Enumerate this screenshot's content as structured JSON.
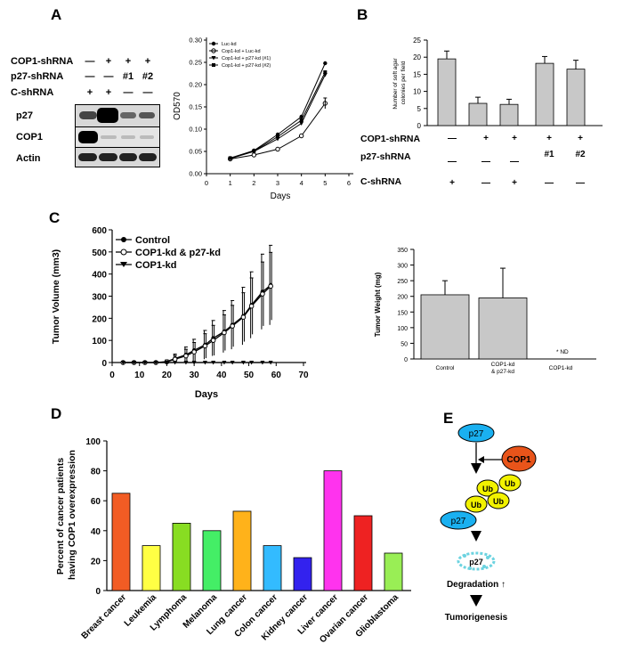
{
  "panels": {
    "A": "A",
    "B": "B",
    "C": "C",
    "D": "D",
    "E": "E"
  },
  "western_blot": {
    "row_labels": [
      "COP1-shRNA",
      "p27-shRNA",
      "C-shRNA"
    ],
    "marks": [
      [
        "—",
        "+",
        "+",
        "+"
      ],
      [
        "—",
        "—",
        "#1",
        "#2"
      ],
      [
        "+",
        "+",
        "—",
        "—"
      ]
    ],
    "blots": [
      "p27",
      "COP1",
      "Actin"
    ]
  },
  "chart_data": [
    {
      "type": "line",
      "panel": "A",
      "ylabel": "OD570",
      "xlabel": "Days",
      "xlim": [
        0,
        6
      ],
      "ylim": [
        0.0,
        0.3
      ],
      "xticks": [
        0,
        1,
        2,
        3,
        4,
        5,
        6
      ],
      "yticks": [
        "0.00",
        "0.05",
        "0.10",
        "0.15",
        "0.20",
        "0.25",
        "0.30"
      ],
      "x": [
        1,
        2,
        3,
        4,
        5
      ],
      "series": [
        {
          "name": "Luc-kd",
          "values": [
            0.035,
            0.052,
            0.088,
            0.128,
            0.248
          ]
        },
        {
          "name": "Cop1-kd + Luc-kd",
          "values": [
            0.033,
            0.042,
            0.055,
            0.085,
            0.158
          ]
        },
        {
          "name": "Cop1-kd + p27-kd (#1)",
          "values": [
            0.034,
            0.05,
            0.078,
            0.113,
            0.222
          ]
        },
        {
          "name": "Cop1-kd + p27-kd (#2)",
          "values": [
            0.035,
            0.051,
            0.083,
            0.12,
            0.228
          ]
        }
      ]
    },
    {
      "type": "bar",
      "panel": "B",
      "ylabel": "Number of soft agar colonies per field",
      "ylim": [
        0,
        25
      ],
      "yticks": [
        "0",
        "5",
        "10",
        "15",
        "20",
        "25"
      ],
      "values": [
        19.5,
        6.5,
        6.2,
        18.2,
        16.5
      ],
      "errors": [
        2.3,
        1.8,
        1.5,
        2.0,
        2.6
      ],
      "row_labels": [
        "COP1-shRNA",
        "p27-shRNA",
        "C-shRNA"
      ],
      "marks": [
        [
          "—",
          "+",
          "+",
          "+",
          "+"
        ],
        [
          "—",
          "—",
          "—",
          "#1",
          "#2"
        ],
        [
          "+",
          "—",
          "+",
          "—",
          "—"
        ]
      ]
    },
    {
      "type": "line",
      "panel": "C",
      "ylabel": "Tumor Volume (mm3)",
      "xlabel": "Days",
      "xlim": [
        0,
        70
      ],
      "ylim": [
        0,
        600
      ],
      "xticks": [
        0,
        10,
        20,
        30,
        40,
        50,
        60,
        70
      ],
      "yticks": [
        0,
        100,
        200,
        300,
        400,
        500,
        600
      ],
      "x": [
        4,
        8,
        12,
        16,
        20,
        23,
        27,
        30,
        34,
        37,
        41,
        44,
        48,
        51,
        55,
        58
      ],
      "series": [
        {
          "name": "Control",
          "values": [
            0,
            0,
            0,
            0,
            4,
            18,
            35,
            55,
            80,
            110,
            140,
            170,
            210,
            260,
            320,
            350
          ]
        },
        {
          "name": "COP1-kd & p27-kd",
          "values": [
            0,
            0,
            0,
            0,
            3,
            15,
            30,
            48,
            75,
            100,
            135,
            165,
            205,
            255,
            310,
            345
          ]
        },
        {
          "name": "COP1-kd",
          "values": [
            0,
            0,
            0,
            0,
            0,
            0,
            0,
            0,
            0,
            0,
            0,
            0,
            0,
            0,
            0,
            0
          ]
        }
      ],
      "errors": [
        0,
        0,
        0,
        0,
        8,
        20,
        35,
        50,
        65,
        80,
        95,
        110,
        130,
        150,
        170,
        180
      ]
    },
    {
      "type": "bar",
      "panel": "C",
      "ylabel": "Tumor Weight (mg)",
      "ylim": [
        0,
        350
      ],
      "yticks": [
        0,
        50,
        100,
        150,
        200,
        250,
        300,
        350
      ],
      "categories": [
        "Control",
        "COP1-kd & p27-kd",
        "COP1-kd"
      ],
      "values": [
        205,
        195,
        0
      ],
      "errors": [
        45,
        95,
        0
      ],
      "annotation": "* ND"
    },
    {
      "type": "bar",
      "panel": "D",
      "ylabel": "Percent of cancer patients having COP1 overexpression",
      "ylim": [
        0,
        100
      ],
      "yticks": [
        0,
        20,
        40,
        60,
        80,
        100
      ],
      "categories": [
        "Breast cancer",
        "Leukemia",
        "Lymphoma",
        "Melanoma",
        "Lung cancer",
        "Colon cancer",
        "Kidney cancer",
        "Liver cancer",
        "Ovarian cancer",
        "Glioblastoma"
      ],
      "values": [
        65,
        30,
        45,
        40,
        53,
        30,
        22,
        80,
        50,
        25
      ],
      "colors": [
        "#f25c24",
        "#ffff44",
        "#88dd22",
        "#44ee66",
        "#ffb21a",
        "#33bbff",
        "#3322ee",
        "#ff33ee",
        "#ee2222",
        "#99ee55"
      ]
    }
  ],
  "diagram": {
    "p27_top": "p27",
    "cop1": "COP1",
    "ub": [
      "Ub",
      "Ub",
      "Ub",
      "Ub"
    ],
    "p27_mid": "p27",
    "p27_deg": "p27",
    "degradation": "Degradation ↑",
    "tumorigenesis": "Tumorigenesis",
    "colors": {
      "p27": "#1ab0f0",
      "cop1": "#e8541a",
      "ub": "#f2f200",
      "deg": "#6cd3e0"
    }
  }
}
